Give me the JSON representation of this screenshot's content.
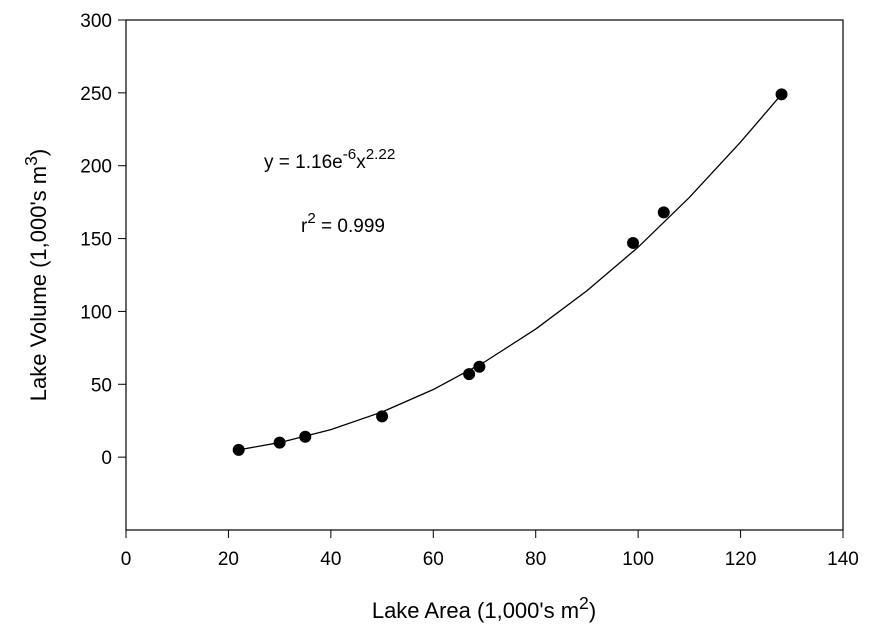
{
  "chart_data": {
    "type": "scatter",
    "xlim": [
      0,
      140
    ],
    "xticks": [
      0,
      20,
      40,
      60,
      80,
      100,
      120,
      140
    ],
    "ylim": [
      -50,
      300
    ],
    "yticks": [
      0,
      50,
      100,
      150,
      200,
      250,
      300
    ],
    "x_label": [
      {
        "text": "Lake Area (1,000's m"
      },
      {
        "text": "2",
        "sup": true
      },
      {
        "text": ")"
      }
    ],
    "y_label": [
      {
        "text": "Lake Volume (1,000's m"
      },
      {
        "text": "3",
        "sup": true
      },
      {
        "text": ")"
      }
    ],
    "annotations": [
      [
        {
          "text": "y = 1.16e"
        },
        {
          "text": "-6",
          "sup": true
        },
        {
          "text": "x"
        },
        {
          "text": "2.22",
          "sup": true
        }
      ],
      [
        {
          "text": "r"
        },
        {
          "text": "2",
          "sup": true
        },
        {
          "text": " = 0.999"
        }
      ]
    ],
    "series": [
      {
        "mode": "markers",
        "color": "#000000",
        "x": [
          22,
          30,
          35,
          50,
          67,
          69,
          99,
          105,
          128
        ],
        "values": [
          5,
          10,
          14,
          28,
          57,
          62,
          147,
          168,
          249
        ]
      },
      {
        "mode": "line",
        "color": "#000000",
        "x": [
          22,
          30,
          40,
          50,
          60,
          70,
          80,
          90,
          100,
          110,
          120,
          128
        ],
        "values": [
          5,
          10,
          18.9,
          31,
          46.4,
          65.3,
          87.9,
          114.2,
          144.1,
          178.2,
          216.2,
          249
        ]
      }
    ]
  }
}
